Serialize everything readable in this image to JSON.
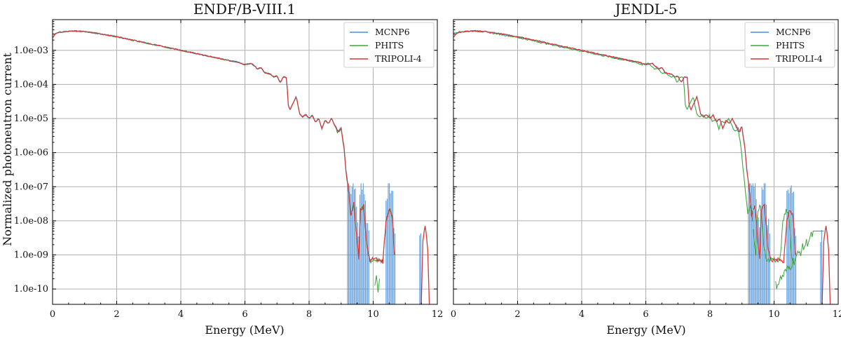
{
  "figure": {
    "ylabel": "Normalized photoneutron current"
  },
  "chart_data": [
    {
      "type": "line",
      "title": "ENDF/B-VIII.1",
      "xlabel": "Energy (MeV)",
      "ylabel": "Normalized photoneutron current",
      "xlim": [
        0,
        12
      ],
      "ylim_log10": [
        -10.45,
        -2.1
      ],
      "x_ticks": [
        0,
        2,
        4,
        6,
        8,
        10,
        12
      ],
      "x_tick_labels": [
        "0",
        "2",
        "4",
        "6",
        "8",
        "10",
        "12"
      ],
      "y_ticks_log10": [
        -10,
        -9,
        -8,
        -7,
        -6,
        -5,
        -4,
        -3
      ],
      "y_tick_labels": [
        "1.0e-10",
        "1.0e-09",
        "1.0e-08",
        "1.0e-07",
        "1.0e-06",
        "1.0e-05",
        "1.0e-04",
        "1.0e-03"
      ],
      "grid": true,
      "legend_position": "top-right",
      "series": [
        {
          "name": "MCNP6",
          "color": "#4a8fd4"
        },
        {
          "name": "PHITS",
          "color": "#3aa63a"
        },
        {
          "name": "TRIPOLI-4",
          "color": "#d93636"
        }
      ],
      "reference_curve": {
        "x": [
          0,
          0.1,
          0.2,
          0.3,
          0.5,
          0.7,
          1.0,
          1.5,
          2.0,
          2.5,
          3.0,
          3.5,
          4.0,
          4.5,
          5.0,
          5.5,
          5.8,
          6.0,
          6.2,
          6.4,
          6.5,
          6.6,
          6.8,
          6.9,
          7.0,
          7.1,
          7.2,
          7.3,
          7.35,
          7.4,
          7.5,
          7.6,
          7.7,
          7.8,
          7.9,
          8.0,
          8.1,
          8.2,
          8.3,
          8.4,
          8.5,
          8.6,
          8.7,
          8.8,
          8.9,
          9.0,
          9.1,
          9.15,
          9.2,
          9.25,
          9.3,
          9.4,
          9.5,
          9.55,
          9.6,
          9.7,
          9.8,
          9.9,
          10.0,
          10.3,
          10.4,
          10.5,
          10.6,
          10.65,
          10.7
        ],
        "log10_y": [
          -2.62,
          -2.5,
          -2.47,
          -2.46,
          -2.44,
          -2.43,
          -2.45,
          -2.52,
          -2.6,
          -2.7,
          -2.8,
          -2.9,
          -3.0,
          -3.1,
          -3.2,
          -3.3,
          -3.35,
          -3.42,
          -3.38,
          -3.55,
          -3.5,
          -3.65,
          -3.7,
          -3.78,
          -3.75,
          -3.95,
          -3.78,
          -3.8,
          -4.6,
          -4.75,
          -4.55,
          -4.35,
          -4.85,
          -4.95,
          -4.88,
          -5.0,
          -4.9,
          -5.1,
          -5.0,
          -5.3,
          -5.05,
          -5.15,
          -5.0,
          -5.2,
          -5.4,
          -5.25,
          -5.95,
          -6.5,
          -6.9,
          -7.3,
          -7.85,
          -7.5,
          -8.6,
          -9.1,
          -7.7,
          -7.55,
          -8.7,
          -9.2,
          -9.1,
          -9.2,
          -8.0,
          -7.65,
          -7.9,
          -8.9,
          -9.2
        ],
        "peak_x": [
          11.55,
          11.6,
          11.62,
          11.65,
          11.7
        ],
        "peak_log10_y": [
          -8.6,
          -8.25,
          -8.15,
          -8.35,
          -8.85
        ]
      }
    },
    {
      "type": "line",
      "title": "JENDL-5",
      "xlabel": "Energy (MeV)",
      "ylabel": "",
      "xlim": [
        0,
        12
      ],
      "ylim_log10": [
        -10.45,
        -2.1
      ],
      "x_ticks": [
        0,
        2,
        4,
        6,
        8,
        10,
        12
      ],
      "x_tick_labels": [
        "0",
        "2",
        "4",
        "6",
        "8",
        "10",
        "12"
      ],
      "y_ticks_log10": [
        -10,
        -9,
        -8,
        -7,
        -6,
        -5,
        -4,
        -3
      ],
      "y_tick_labels": [
        "1.0e-10",
        "1.0e-09",
        "1.0e-08",
        "1.0e-07",
        "1.0e-06",
        "1.0e-05",
        "1.0e-04",
        "1.0e-03"
      ],
      "grid": true,
      "legend_position": "top-right",
      "series": [
        {
          "name": "MCNP6",
          "color": "#4a8fd4"
        },
        {
          "name": "PHITS",
          "color": "#3aa63a"
        },
        {
          "name": "TRIPOLI-4",
          "color": "#d93636"
        }
      ],
      "reference_curve": {
        "x": [
          0,
          0.1,
          0.2,
          0.3,
          0.5,
          0.7,
          1.0,
          1.5,
          2.0,
          2.5,
          3.0,
          3.5,
          4.0,
          4.5,
          5.0,
          5.5,
          5.8,
          6.0,
          6.2,
          6.4,
          6.5,
          6.6,
          6.8,
          6.9,
          7.0,
          7.1,
          7.2,
          7.3,
          7.35,
          7.4,
          7.5,
          7.6,
          7.7,
          7.8,
          7.9,
          8.0,
          8.1,
          8.2,
          8.3,
          8.4,
          8.5,
          8.6,
          8.7,
          8.8,
          8.9,
          9.0,
          9.1,
          9.15,
          9.2,
          9.25,
          9.3,
          9.4,
          9.5,
          9.55,
          9.6,
          9.7,
          9.8,
          9.9,
          10.0,
          10.3,
          10.4,
          10.5,
          10.6,
          10.65,
          10.7
        ],
        "log10_y": [
          -2.62,
          -2.5,
          -2.47,
          -2.46,
          -2.44,
          -2.43,
          -2.45,
          -2.52,
          -2.6,
          -2.7,
          -2.8,
          -2.9,
          -3.0,
          -3.1,
          -3.2,
          -3.3,
          -3.35,
          -3.42,
          -3.38,
          -3.55,
          -3.5,
          -3.65,
          -3.7,
          -3.78,
          -3.75,
          -3.95,
          -3.78,
          -3.8,
          -4.6,
          -4.75,
          -4.55,
          -4.35,
          -4.85,
          -4.95,
          -4.88,
          -5.0,
          -4.9,
          -5.1,
          -5.0,
          -5.3,
          -5.05,
          -5.15,
          -5.0,
          -5.2,
          -5.4,
          -5.25,
          -5.95,
          -6.5,
          -6.9,
          -7.3,
          -7.85,
          -7.5,
          -8.6,
          -9.1,
          -7.7,
          -7.55,
          -8.7,
          -9.2,
          -9.1,
          -9.2,
          -8.0,
          -7.65,
          -7.9,
          -8.9,
          -9.2
        ],
        "peak_x": [
          11.55,
          11.6,
          11.62,
          11.65,
          11.7
        ],
        "peak_log10_y": [
          -8.6,
          -8.25,
          -8.15,
          -8.35,
          -8.85
        ],
        "phits_shift_mev": -0.12
      }
    }
  ]
}
